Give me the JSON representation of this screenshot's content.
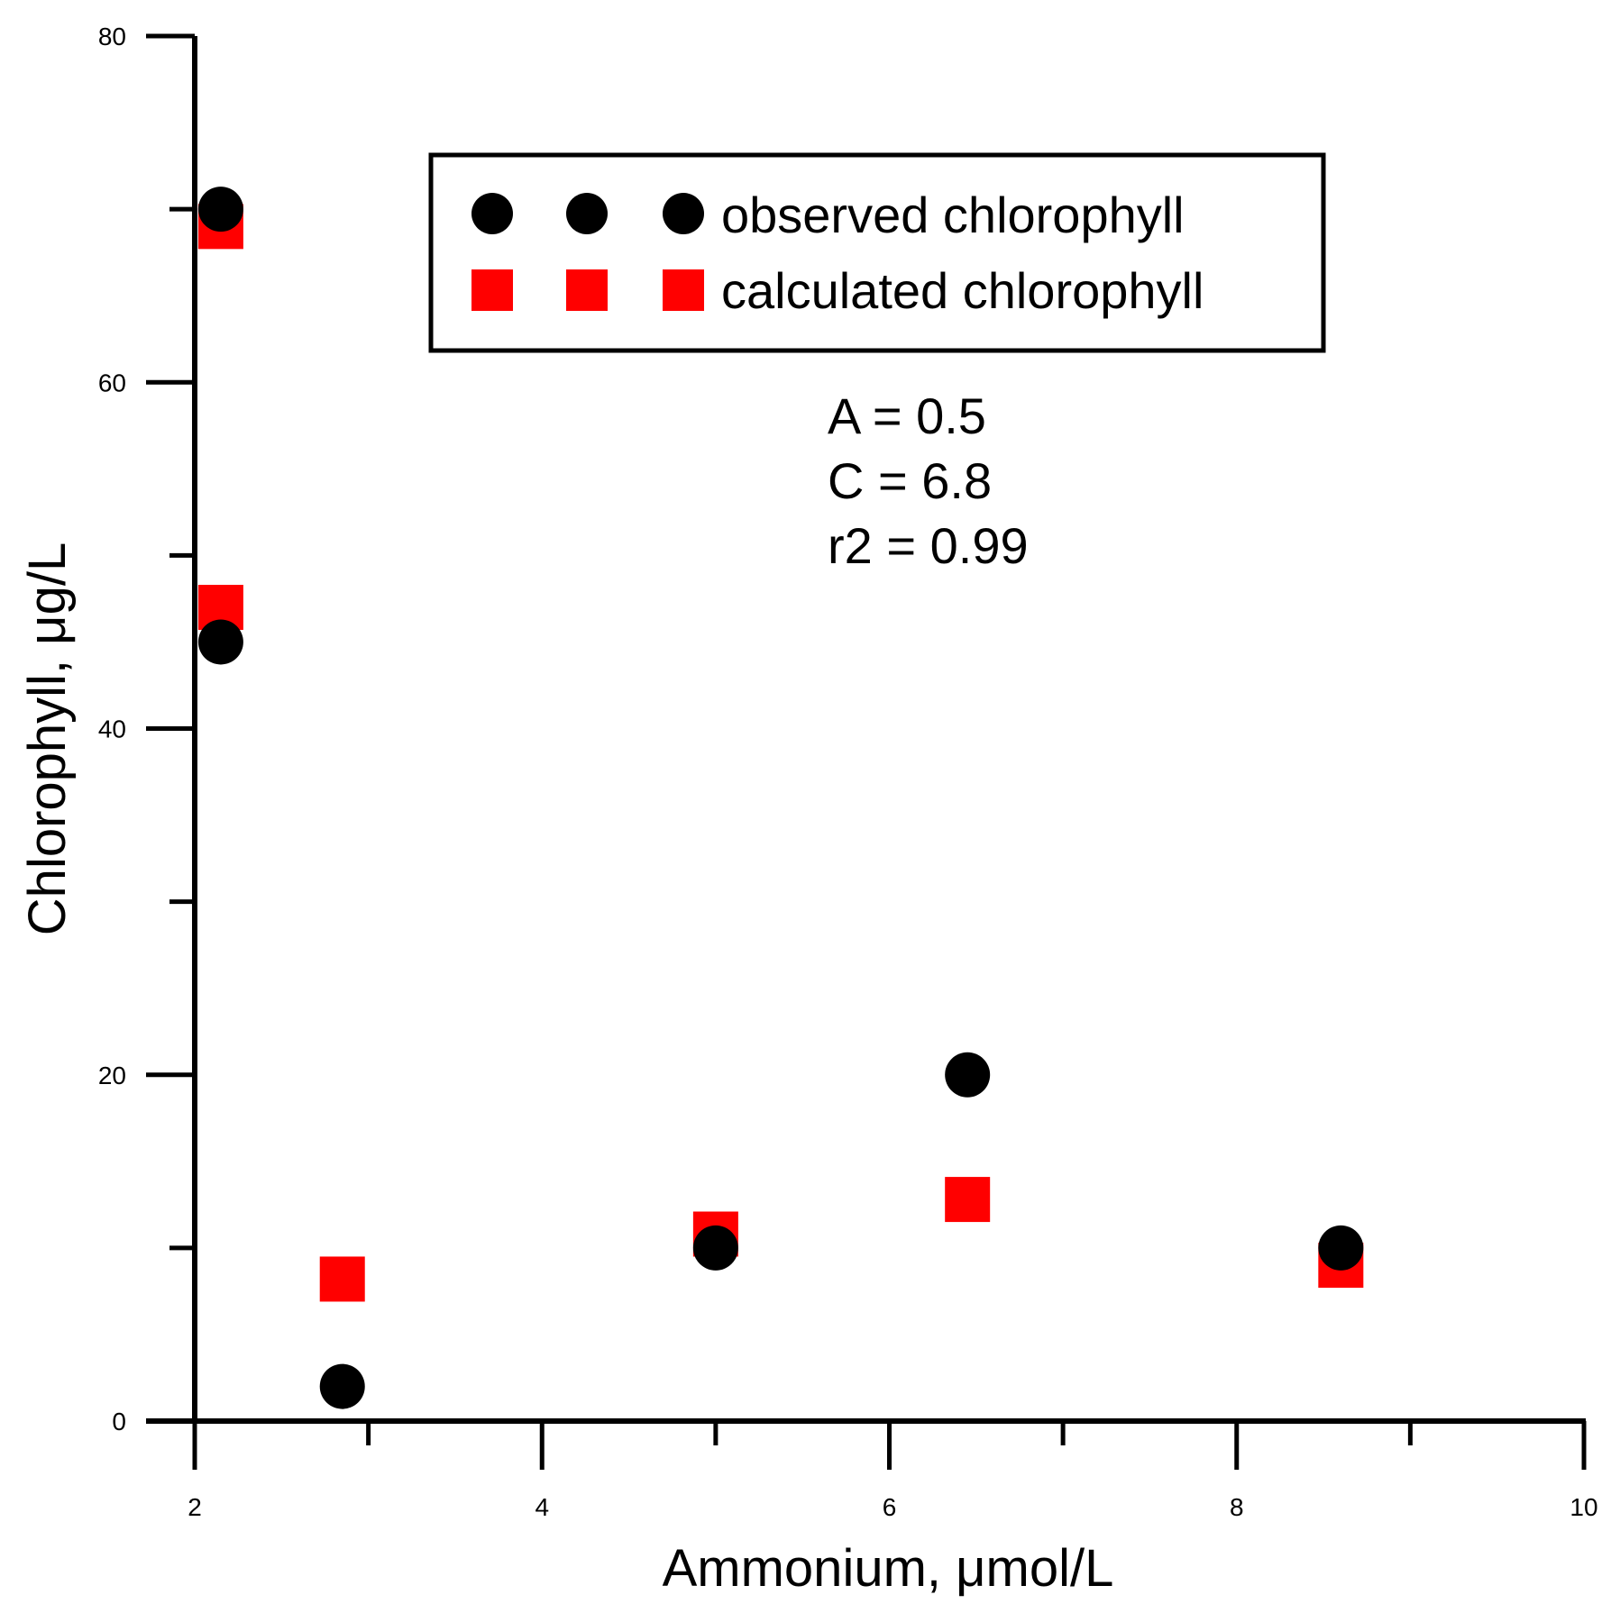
{
  "chart_data": {
    "type": "scatter",
    "xlabel": "Ammonium, μmol/L",
    "ylabel": "Chlorophyll, μg/L",
    "xlim": [
      2,
      10
    ],
    "ylim": [
      0,
      80
    ],
    "x_ticks_major": [
      2,
      4,
      6,
      8,
      10
    ],
    "x_ticks_minor": [
      3,
      5,
      7,
      9
    ],
    "y_ticks_major": [
      0,
      20,
      40,
      60,
      80
    ],
    "y_ticks_minor": [
      10,
      30,
      50,
      70
    ],
    "grid": false,
    "legend_position": "top-center",
    "series": [
      {
        "name": "observed chlorophyll",
        "marker": "circle",
        "color": "#000000",
        "points": [
          {
            "x": 2.15,
            "y": 70
          },
          {
            "x": 2.15,
            "y": 45
          },
          {
            "x": 2.85,
            "y": 2
          },
          {
            "x": 5.0,
            "y": 10
          },
          {
            "x": 6.45,
            "y": 20
          },
          {
            "x": 8.6,
            "y": 10
          }
        ]
      },
      {
        "name": "calculated chlorophyll",
        "marker": "square",
        "color": "#ff0000",
        "points": [
          {
            "x": 2.15,
            "y": 69
          },
          {
            "x": 2.15,
            "y": 47
          },
          {
            "x": 2.85,
            "y": 8.2
          },
          {
            "x": 5.0,
            "y": 10.8
          },
          {
            "x": 6.45,
            "y": 12.8
          },
          {
            "x": 8.6,
            "y": 9
          }
        ]
      }
    ],
    "annotations": [
      "A = 0.5",
      "C = 6.8",
      "r2 = 0.99"
    ]
  }
}
